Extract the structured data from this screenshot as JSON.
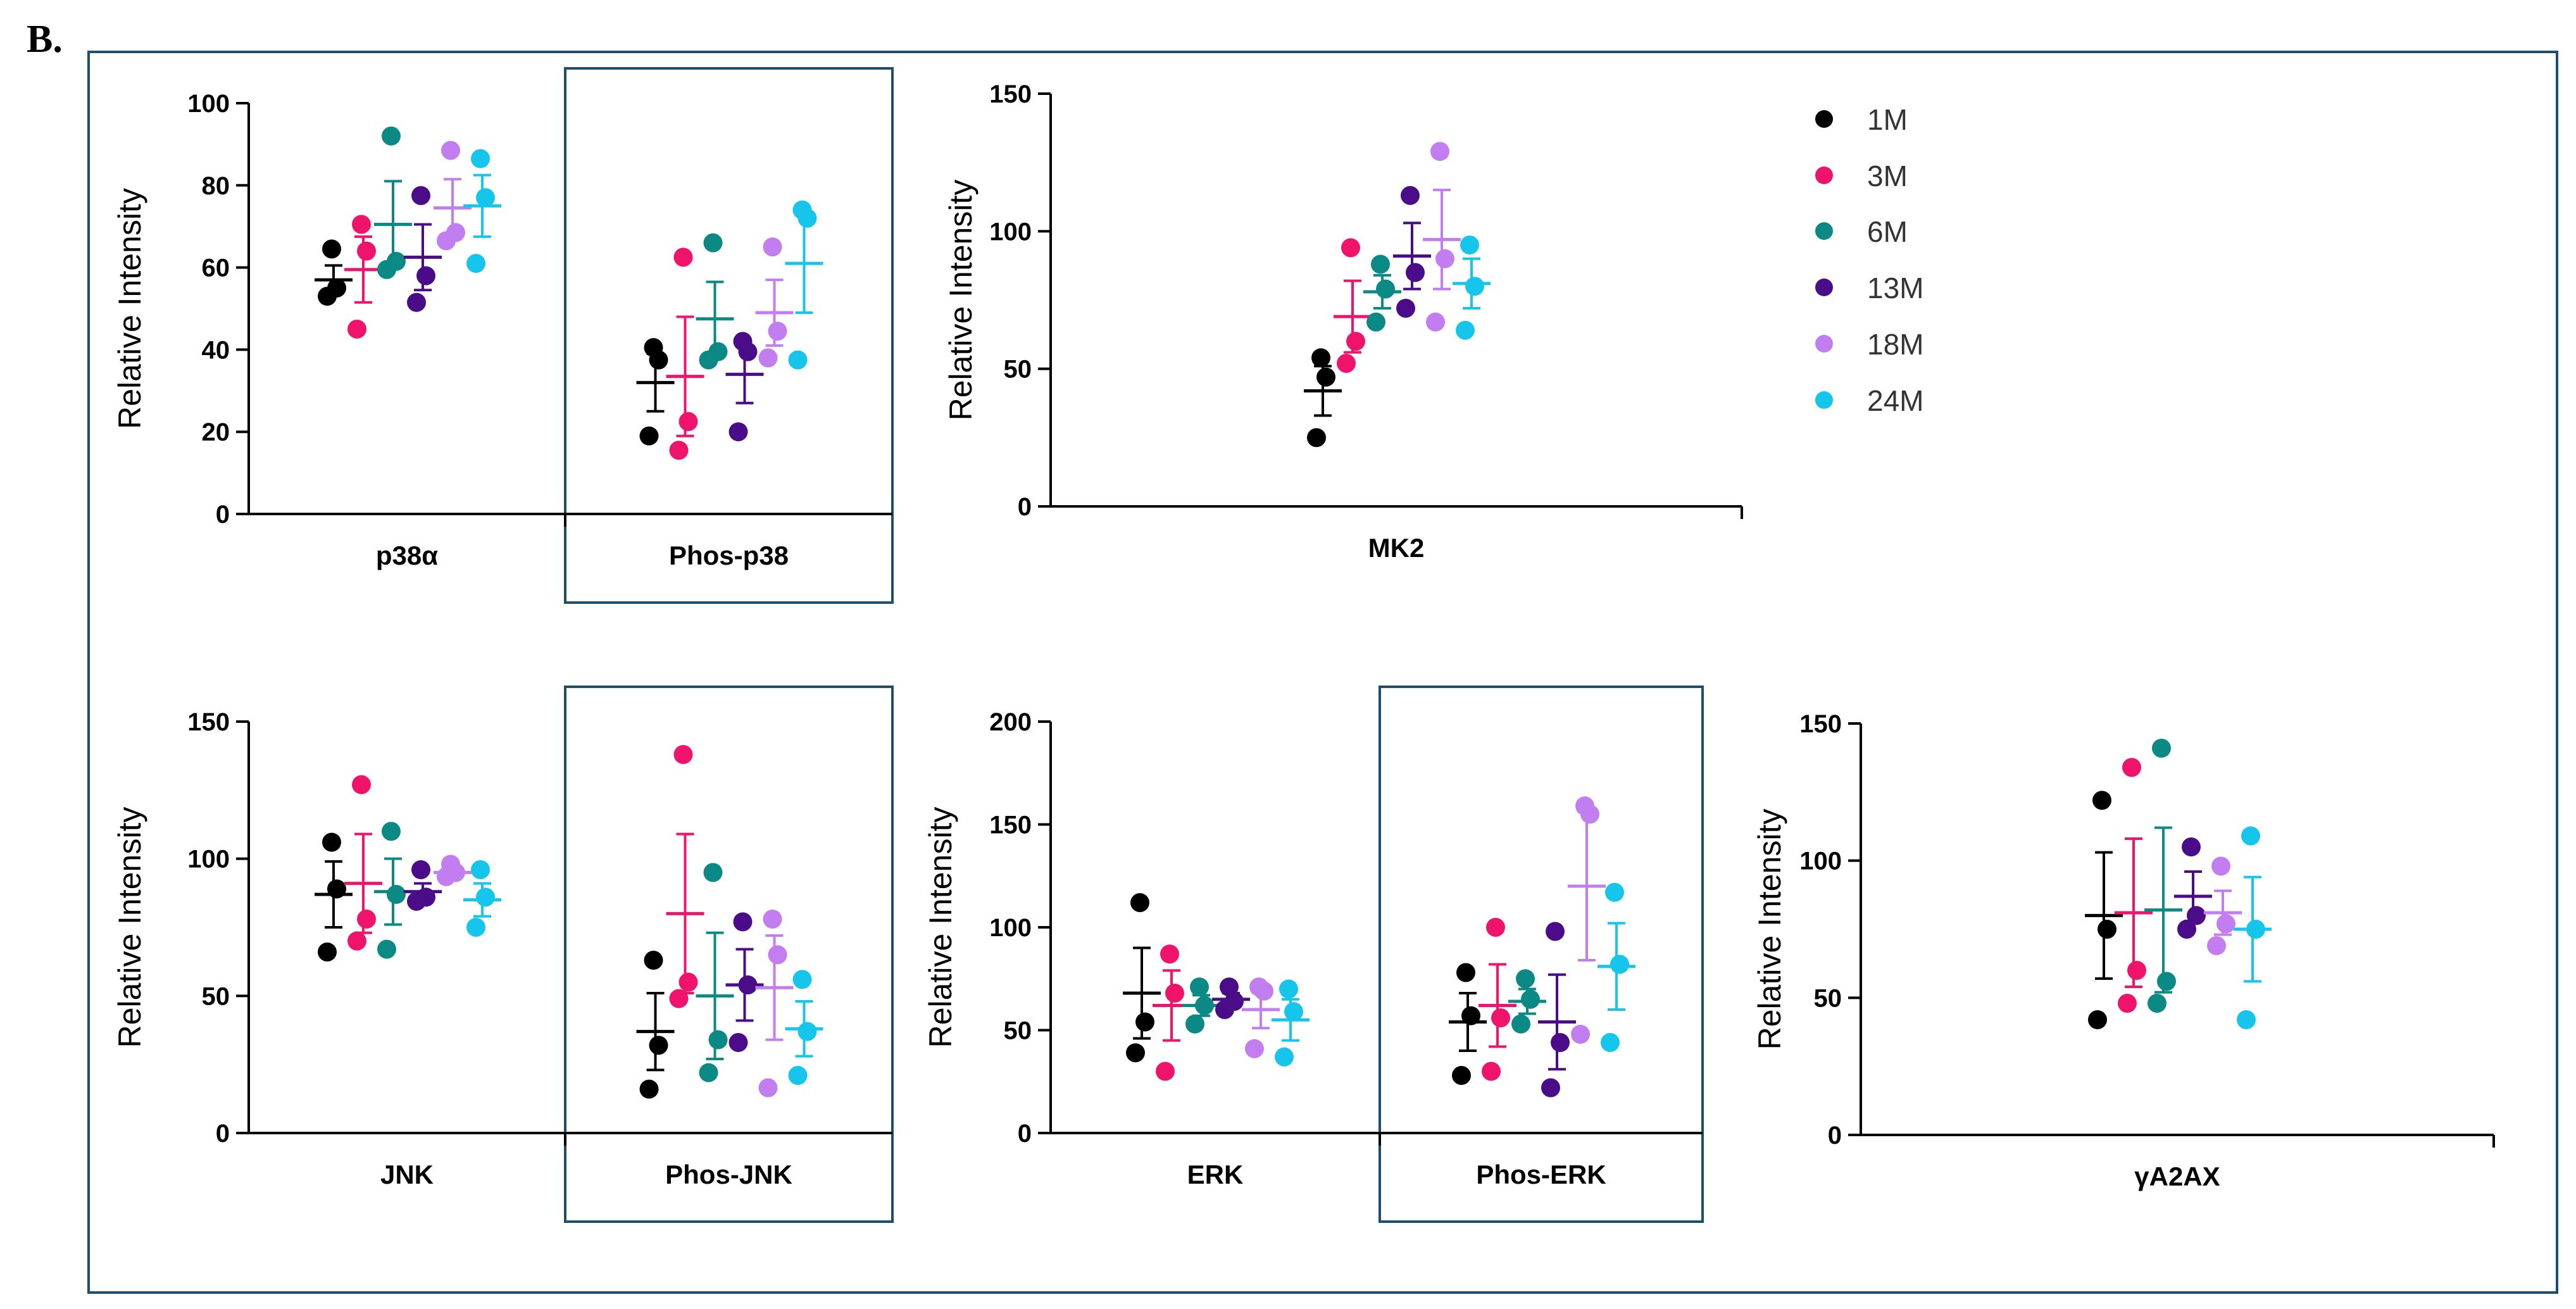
{
  "panel_label": "B.",
  "colors": {
    "frame": "#1f4e6b",
    "axis": "#000000",
    "series": [
      "#000000",
      "#f0136b",
      "#0b8a85",
      "#4b0c8a",
      "#c27ef0",
      "#16c5ec"
    ]
  },
  "legend": {
    "items": [
      {
        "label": "1M"
      },
      {
        "label": "3M"
      },
      {
        "label": "6M"
      },
      {
        "label": "13M"
      },
      {
        "label": "18M"
      },
      {
        "label": "24M"
      }
    ]
  },
  "chart_data": [
    {
      "type": "scatter",
      "title": "",
      "ylabel": "Relative Intensity",
      "ylim": [
        0,
        100
      ],
      "yticks": [
        0,
        20,
        40,
        60,
        80,
        100
      ],
      "highlight_groups": [
        1
      ],
      "groups": [
        {
          "name": "p38α",
          "series": [
            {
              "name": "1M",
              "points": [
                53,
                55,
                64.5
              ],
              "mean": 57,
              "sem": 3.5
            },
            {
              "name": "3M",
              "points": [
                45,
                64,
                70.5
              ],
              "mean": 59.5,
              "sem": 8
            },
            {
              "name": "6M",
              "points": [
                59.5,
                61.5,
                92
              ],
              "mean": 70.5,
              "sem": 10.5
            },
            {
              "name": "13M",
              "points": [
                51.5,
                58,
                77.5
              ],
              "mean": 62.5,
              "sem": 8
            },
            {
              "name": "18M",
              "points": [
                66.5,
                68.5,
                88.5
              ],
              "mean": 74.5,
              "sem": 7
            },
            {
              "name": "24M",
              "points": [
                61,
                77,
                86.5
              ],
              "mean": 75,
              "sem": 7.5
            }
          ]
        },
        {
          "name": "Phos-p38",
          "series": [
            {
              "name": "1M",
              "points": [
                19,
                37.5,
                40.5
              ],
              "mean": 32,
              "sem": 7
            },
            {
              "name": "3M",
              "points": [
                15.5,
                22.5,
                62.5
              ],
              "mean": 33.5,
              "sem": 14.5
            },
            {
              "name": "6M",
              "points": [
                37.5,
                39.5,
                66
              ],
              "mean": 47.5,
              "sem": 9
            },
            {
              "name": "13M",
              "points": [
                20,
                39.5,
                42
              ],
              "mean": 34,
              "sem": 7
            },
            {
              "name": "18M",
              "points": [
                38,
                44.5,
                65
              ],
              "mean": 49,
              "sem": 8
            },
            {
              "name": "24M",
              "points": [
                37.5,
                72,
                74
              ],
              "mean": 61,
              "sem": 12
            }
          ]
        }
      ]
    },
    {
      "type": "scatter",
      "title": "",
      "ylabel": "Relative Intensity",
      "ylim": [
        0,
        150
      ],
      "yticks": [
        0,
        50,
        100,
        150
      ],
      "highlight_groups": [],
      "groups": [
        {
          "name": "MK2",
          "series": [
            {
              "name": "1M",
              "points": [
                25,
                47,
                54
              ],
              "mean": 42,
              "sem": 9
            },
            {
              "name": "3M",
              "points": [
                52,
                60,
                94
              ],
              "mean": 69,
              "sem": 13
            },
            {
              "name": "6M",
              "points": [
                67,
                79,
                88
              ],
              "mean": 78,
              "sem": 6
            },
            {
              "name": "13M",
              "points": [
                72,
                85,
                113
              ],
              "mean": 91,
              "sem": 12
            },
            {
              "name": "18M",
              "points": [
                67,
                90,
                129
              ],
              "mean": 97,
              "sem": 18
            },
            {
              "name": "24M",
              "points": [
                64,
                80,
                95
              ],
              "mean": 81,
              "sem": 9
            }
          ]
        }
      ]
    },
    {
      "type": "scatter",
      "title": "",
      "ylabel": "Relative Intensity",
      "ylim": [
        0,
        150
      ],
      "yticks": [
        0,
        50,
        100,
        150
      ],
      "highlight_groups": [
        1
      ],
      "groups": [
        {
          "name": "JNK",
          "series": [
            {
              "name": "1M",
              "points": [
                66,
                89,
                106
              ],
              "mean": 87,
              "sem": 12
            },
            {
              "name": "3M",
              "points": [
                70,
                78,
                127
              ],
              "mean": 91,
              "sem": 18
            },
            {
              "name": "6M",
              "points": [
                67,
                87,
                110
              ],
              "mean": 88,
              "sem": 12
            },
            {
              "name": "13M",
              "points": [
                84.5,
                86,
                96
              ],
              "mean": 88,
              "sem": 3
            },
            {
              "name": "18M",
              "points": [
                93.5,
                95,
                98
              ],
              "mean": 95,
              "sem": 1.5
            },
            {
              "name": "24M",
              "points": [
                75,
                86,
                96
              ],
              "mean": 85,
              "sem": 6
            }
          ]
        },
        {
          "name": "Phos-JNK",
          "series": [
            {
              "name": "1M",
              "points": [
                16,
                32,
                63
              ],
              "mean": 37,
              "sem": 14
            },
            {
              "name": "3M",
              "points": [
                49,
                55,
                138
              ],
              "mean": 80,
              "sem": 29
            },
            {
              "name": "6M",
              "points": [
                22,
                34,
                95
              ],
              "mean": 50,
              "sem": 23
            },
            {
              "name": "13M",
              "points": [
                33,
                54,
                77
              ],
              "mean": 54,
              "sem": 13
            },
            {
              "name": "18M",
              "points": [
                16.5,
                65,
                78
              ],
              "mean": 53,
              "sem": 19
            },
            {
              "name": "24M",
              "points": [
                21,
                37,
                56
              ],
              "mean": 38,
              "sem": 10
            }
          ]
        }
      ]
    },
    {
      "type": "scatter",
      "title": "",
      "ylabel": "Relative Intensity",
      "ylim": [
        0,
        200
      ],
      "yticks": [
        0,
        50,
        100,
        150,
        200
      ],
      "highlight_groups": [
        1
      ],
      "groups": [
        {
          "name": "ERK",
          "series": [
            {
              "name": "1M",
              "points": [
                39,
                54,
                112
              ],
              "mean": 68,
              "sem": 22
            },
            {
              "name": "3M",
              "points": [
                30,
                68,
                87
              ],
              "mean": 62,
              "sem": 17
            },
            {
              "name": "6M",
              "points": [
                53,
                62,
                71
              ],
              "mean": 62,
              "sem": 5
            },
            {
              "name": "13M",
              "points": [
                60,
                64,
                71
              ],
              "mean": 65,
              "sem": 3
            },
            {
              "name": "18M",
              "points": [
                41,
                69,
                71
              ],
              "mean": 60,
              "sem": 9
            },
            {
              "name": "24M",
              "points": [
                37,
                59,
                70
              ],
              "mean": 55,
              "sem": 10
            }
          ]
        },
        {
          "name": "Phos-ERK",
          "series": [
            {
              "name": "1M",
              "points": [
                28,
                57,
                78
              ],
              "mean": 54,
              "sem": 14
            },
            {
              "name": "3M",
              "points": [
                30,
                56,
                100
              ],
              "mean": 62,
              "sem": 20
            },
            {
              "name": "6M",
              "points": [
                53,
                65,
                75
              ],
              "mean": 64,
              "sem": 6
            },
            {
              "name": "13M",
              "points": [
                22,
                44,
                98
              ],
              "mean": 54,
              "sem": 23
            },
            {
              "name": "18M",
              "points": [
                48,
                155,
                159
              ],
              "mean": 120,
              "sem": 36
            },
            {
              "name": "24M",
              "points": [
                44,
                82,
                117
              ],
              "mean": 81,
              "sem": 21
            }
          ]
        }
      ]
    },
    {
      "type": "scatter",
      "title": "",
      "ylabel": "Relative Intensity",
      "ylim": [
        0,
        150
      ],
      "yticks": [
        0,
        50,
        100,
        150
      ],
      "highlight_groups": [],
      "groups": [
        {
          "name": "γA2AX",
          "series": [
            {
              "name": "1M",
              "points": [
                42,
                75,
                122
              ],
              "mean": 80,
              "sem": 23
            },
            {
              "name": "3M",
              "points": [
                48,
                60,
                134
              ],
              "mean": 81,
              "sem": 27
            },
            {
              "name": "6M",
              "points": [
                48,
                56,
                141
              ],
              "mean": 82,
              "sem": 30
            },
            {
              "name": "13M",
              "points": [
                75,
                80,
                105
              ],
              "mean": 87,
              "sem": 9
            },
            {
              "name": "18M",
              "points": [
                69,
                77,
                98
              ],
              "mean": 81,
              "sem": 8
            },
            {
              "name": "24M",
              "points": [
                42,
                75,
                109
              ],
              "mean": 75,
              "sem": 19
            }
          ]
        }
      ]
    }
  ]
}
